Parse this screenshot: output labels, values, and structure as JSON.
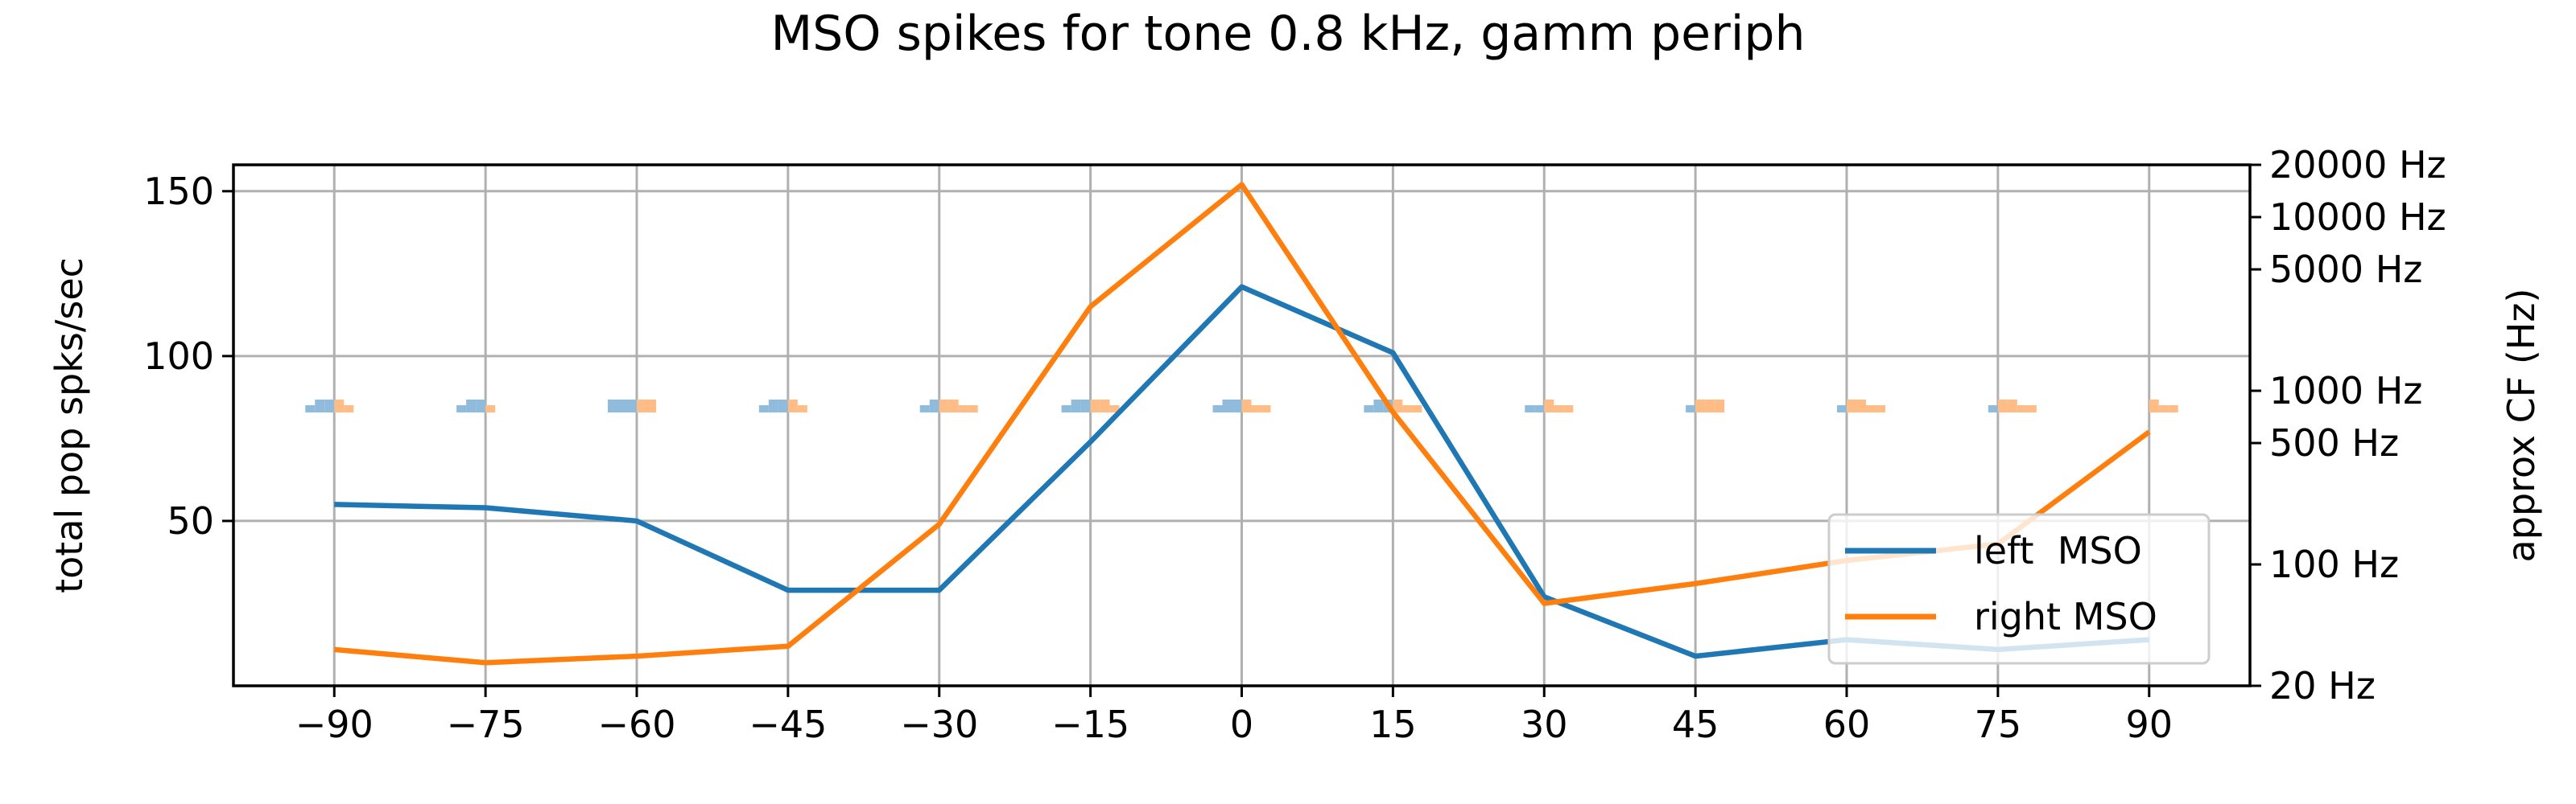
{
  "chart_data": {
    "type": "line",
    "title": "MSO spikes for tone 0.8 kHz, gamm periph",
    "ylabel": "total pop spks/sec",
    "ylabel_right": "approx CF (Hz)",
    "xlabel": "",
    "x": [
      -90,
      -75,
      -60,
      -45,
      -30,
      -15,
      0,
      15,
      30,
      45,
      60,
      75,
      90
    ],
    "x_tick_labels": [
      "−90",
      "−75",
      "−60",
      "−45",
      "−30",
      "−15",
      "0",
      "15",
      "30",
      "45",
      "60",
      "75",
      "90"
    ],
    "xlim": [
      -100,
      100
    ],
    "ylim": [
      0,
      158
    ],
    "y_ticks": [
      50,
      100,
      150
    ],
    "y_tick_labels": [
      "50",
      "100",
      "150"
    ],
    "right_axis": {
      "scale": "log",
      "ylim": [
        20,
        20000
      ],
      "ticks": [
        20,
        100,
        500,
        1000,
        5000,
        10000,
        20000
      ],
      "tick_labels": [
        "20 Hz",
        "100 Hz",
        "500 Hz",
        "1000 Hz",
        "5000 Hz",
        "10000 Hz",
        "20000 Hz"
      ]
    },
    "grid": true,
    "legend_position": "lower right",
    "series": [
      {
        "name": "left  MSO",
        "color": "#1f77b4",
        "values": [
          55,
          54,
          50,
          29,
          29,
          74,
          121,
          101,
          27,
          9,
          14,
          11,
          14
        ]
      },
      {
        "name": "right MSO",
        "color": "#ff7f0e",
        "values": [
          11,
          7,
          9,
          12,
          49,
          115,
          152,
          83,
          25,
          31,
          38,
          43,
          77
        ]
      }
    ],
    "inset_histograms": {
      "description_free": true,
      "colors": [
        "#8fbcdc",
        "#ffbd85"
      ],
      "center_y_value": 84,
      "bins_per_side": 4,
      "groups": [
        {
          "x": -90,
          "left": [
            0,
            1,
            2,
            2
          ],
          "right": [
            2,
            1,
            0,
            0
          ]
        },
        {
          "x": -75,
          "left": [
            0,
            1,
            2,
            2
          ],
          "right": [
            1,
            0,
            0,
            0
          ]
        },
        {
          "x": -60,
          "left": [
            0,
            2,
            2,
            2
          ],
          "right": [
            2,
            2,
            0,
            0
          ]
        },
        {
          "x": -45,
          "left": [
            0,
            1,
            2,
            2
          ],
          "right": [
            2,
            1,
            0,
            0
          ]
        },
        {
          "x": -30,
          "left": [
            0,
            0,
            1,
            2
          ],
          "right": [
            2,
            2,
            1,
            1
          ]
        },
        {
          "x": -15,
          "left": [
            0,
            1,
            2,
            2
          ],
          "right": [
            2,
            2,
            1,
            0
          ]
        },
        {
          "x": 0,
          "left": [
            0,
            1,
            2,
            2
          ],
          "right": [
            2,
            1,
            1,
            0
          ]
        },
        {
          "x": 15,
          "left": [
            0,
            1,
            2,
            2
          ],
          "right": [
            2,
            1,
            1,
            0
          ]
        },
        {
          "x": 30,
          "left": [
            0,
            0,
            1,
            1
          ],
          "right": [
            2,
            1,
            1,
            0
          ]
        },
        {
          "x": 45,
          "left": [
            0,
            0,
            0,
            1
          ],
          "right": [
            2,
            2,
            2,
            0
          ]
        },
        {
          "x": 60,
          "left": [
            0,
            0,
            0,
            1
          ],
          "right": [
            2,
            2,
            1,
            1
          ]
        },
        {
          "x": 75,
          "left": [
            0,
            0,
            0,
            1
          ],
          "right": [
            2,
            2,
            1,
            1
          ]
        },
        {
          "x": 90,
          "left": [
            0,
            0,
            0,
            0
          ],
          "right": [
            2,
            1,
            1,
            0
          ]
        }
      ]
    }
  }
}
